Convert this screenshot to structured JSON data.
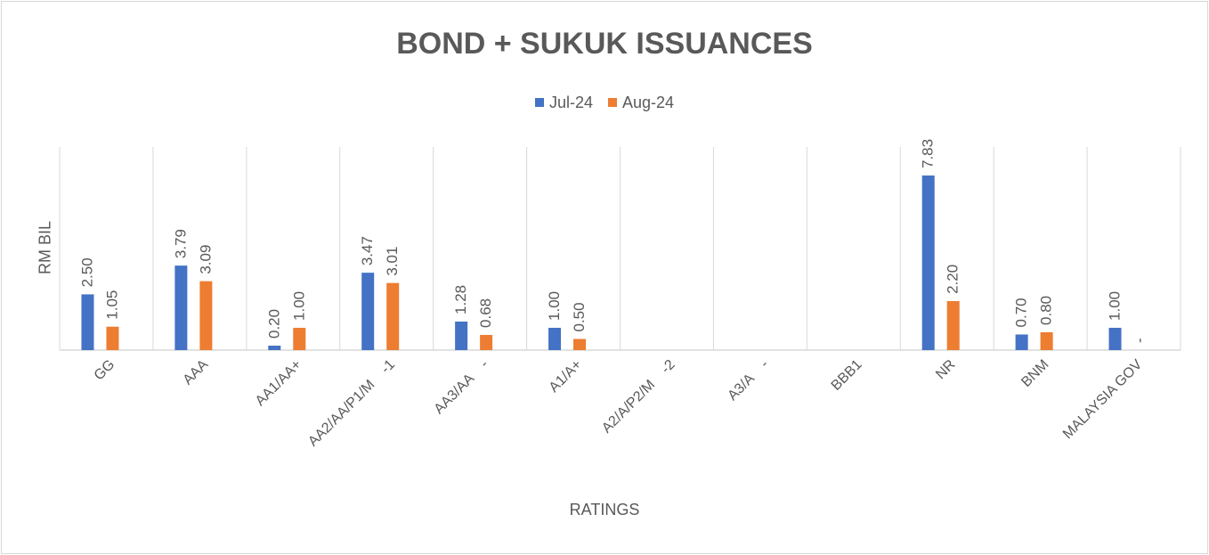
{
  "chart_data": {
    "type": "bar",
    "title": "BOND + SUKUK ISSUANCES",
    "xlabel": "RATINGS",
    "ylabel": "RM BIL",
    "ylim": [
      0,
      8
    ],
    "grid": "vertical category separators",
    "legend_position": "top",
    "categories": [
      "GG",
      "AAA",
      "AA1/AA+",
      "AA2/AA/P1/M    -1",
      "AA3/AA    -",
      "A1/A+",
      "A2/A/P2/M    -2",
      "A3/A    -",
      "BBB1",
      "NR",
      "BNM",
      "MALAYSIA GOV"
    ],
    "series": [
      {
        "name": "Jul-24",
        "color": "#4472c4",
        "values": [
          2.5,
          3.79,
          0.2,
          3.47,
          1.28,
          1.0,
          null,
          null,
          null,
          7.83,
          0.7,
          1.0
        ],
        "labels": [
          "2.50",
          "3.79",
          "0.20",
          "3.47",
          "1.28",
          "1.00",
          "",
          "",
          "",
          "7.83",
          "0.70",
          "1.00"
        ]
      },
      {
        "name": "Aug-24",
        "color": "#ed7d31",
        "values": [
          1.05,
          3.09,
          1.0,
          3.01,
          0.68,
          0.5,
          null,
          null,
          null,
          2.2,
          0.8,
          0
        ],
        "labels": [
          "1.05",
          "3.09",
          "1.00",
          "3.01",
          "0.68",
          "0.50",
          "",
          "",
          "",
          "2.20",
          "0.80",
          "-"
        ]
      }
    ]
  }
}
